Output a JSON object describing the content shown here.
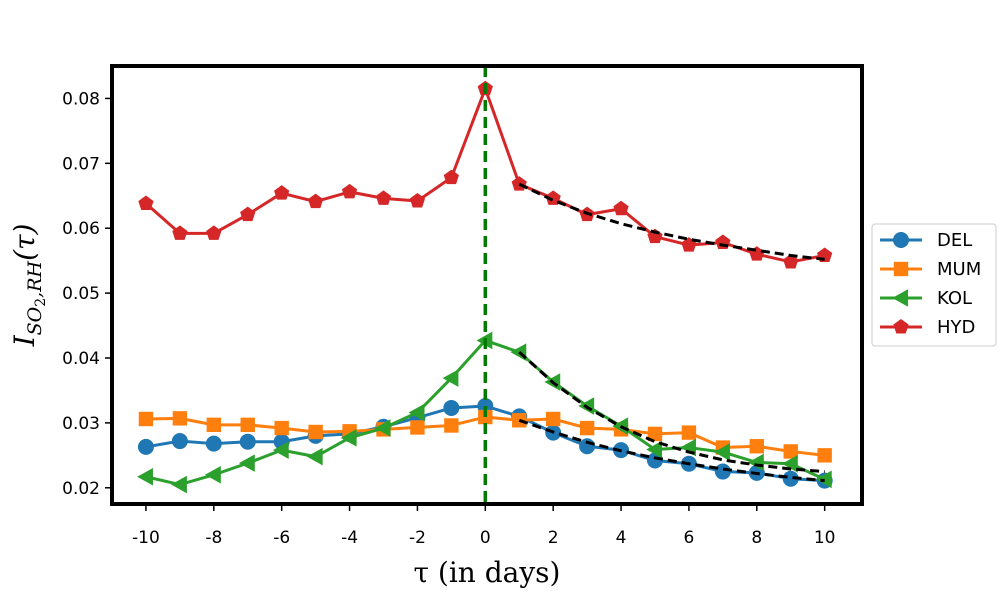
{
  "chart_data": {
    "type": "line",
    "title": "",
    "xlabel": "τ (in days)",
    "ylabel": "I_{SO2,RH}(τ)",
    "ylabel_main": "I",
    "ylabel_sub": "SO",
    "ylabel_sub2": "2",
    "ylabel_sub3": ",RH",
    "ylabel_args": "(τ)",
    "xlim": [
      -11,
      11.1
    ],
    "ylim": [
      0.0175,
      0.085
    ],
    "xticks": [
      -10,
      -8,
      -6,
      -4,
      -2,
      0,
      2,
      4,
      6,
      8,
      10
    ],
    "yticks": [
      0.02,
      0.03,
      0.04,
      0.05,
      0.06,
      0.07,
      0.08
    ],
    "ytick_labels": [
      "0.02",
      "0.03",
      "0.04",
      "0.05",
      "0.06",
      "0.07",
      "0.08"
    ],
    "x": [
      -10,
      -9,
      -8,
      -7,
      -6,
      -5,
      -4,
      -3,
      -2,
      -1,
      0,
      1,
      2,
      3,
      4,
      5,
      6,
      7,
      8,
      9,
      10
    ],
    "series": [
      {
        "name": "DEL",
        "color": "#1f77b4",
        "marker": "circle",
        "values": [
          0.0263,
          0.0272,
          0.0268,
          0.0271,
          0.0271,
          0.028,
          0.0283,
          0.0294,
          0.0308,
          0.0323,
          0.0326,
          0.031,
          0.0285,
          0.0264,
          0.0258,
          0.0242,
          0.0237,
          0.0225,
          0.0223,
          0.0214,
          0.0211
        ]
      },
      {
        "name": "MUM",
        "color": "#ff7f0e",
        "marker": "square",
        "values": [
          0.0306,
          0.0307,
          0.0297,
          0.0297,
          0.0292,
          0.0286,
          0.0287,
          0.029,
          0.0293,
          0.0296,
          0.0309,
          0.0304,
          0.0306,
          0.0292,
          0.029,
          0.0283,
          0.0285,
          0.0262,
          0.0264,
          0.0256,
          0.025
        ]
      },
      {
        "name": "KOL",
        "color": "#2ca02c",
        "marker": "triangle-left",
        "values": [
          0.0217,
          0.0205,
          0.022,
          0.0238,
          0.0258,
          0.0248,
          0.0277,
          0.0292,
          0.0316,
          0.0369,
          0.0427,
          0.0409,
          0.0363,
          0.0326,
          0.0295,
          0.0259,
          0.0262,
          0.0255,
          0.0239,
          0.0237,
          0.0213
        ]
      },
      {
        "name": "HYD",
        "color": "#d62728",
        "marker": "pentagon",
        "values": [
          0.0638,
          0.0592,
          0.0592,
          0.0621,
          0.0654,
          0.0641,
          0.0656,
          0.0646,
          0.0642,
          0.0678,
          0.0815,
          0.0668,
          0.0646,
          0.0621,
          0.063,
          0.0587,
          0.0574,
          0.0578,
          0.056,
          0.0548,
          0.0558
        ]
      }
    ],
    "fit_lines": [
      {
        "name": "DEL fit",
        "x": [
          1,
          2,
          3,
          4,
          5,
          6,
          7,
          8,
          9,
          10
        ],
        "values": [
          0.0304,
          0.0286,
          0.027,
          0.0257,
          0.0246,
          0.0237,
          0.0229,
          0.0222,
          0.0216,
          0.0211
        ]
      },
      {
        "name": "KOL fit",
        "x": [
          1,
          2,
          3,
          4,
          5,
          6,
          7,
          8,
          9,
          10
        ],
        "values": [
          0.0409,
          0.0362,
          0.0324,
          0.0294,
          0.0271,
          0.0255,
          0.0243,
          0.0235,
          0.0229,
          0.0225
        ]
      },
      {
        "name": "HYD fit",
        "x": [
          1,
          2,
          3,
          4,
          5,
          6,
          7,
          8,
          9,
          10
        ],
        "values": [
          0.0668,
          0.0643,
          0.0623,
          0.0607,
          0.0594,
          0.0583,
          0.0574,
          0.0566,
          0.0558,
          0.0552
        ]
      }
    ],
    "vline": {
      "x": 0,
      "color": "#007a00"
    },
    "fit_color": "#000000",
    "legend_position": "right-outside"
  }
}
